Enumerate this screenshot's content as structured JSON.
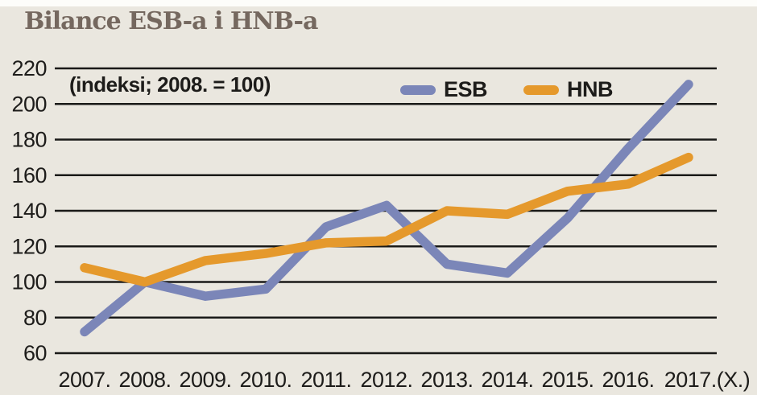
{
  "window": {
    "background": "#fdfdfa",
    "canvas_background": "#eae7df"
  },
  "header": {
    "title": "Bilance ESB-a i HNB-a",
    "title_color": "#75685f"
  },
  "chart_data": {
    "type": "line",
    "title": "Bilance ESB-a i HNB-a",
    "subtitle": "(indeksi; 2008. = 100)",
    "categories": [
      "2007.",
      "2008.",
      "2009.",
      "2010.",
      "2011.",
      "2012.",
      "2013.",
      "2014.",
      "2015.",
      "2016.",
      "2017.(X.)"
    ],
    "series": [
      {
        "name": "ESB",
        "color": "#7b86b8",
        "values": [
          72,
          100,
          92,
          96,
          131,
          143,
          110,
          105,
          136,
          175,
          211
        ]
      },
      {
        "name": "HNB",
        "color": "#e5992c",
        "values": [
          108,
          100,
          112,
          116,
          122,
          123,
          140,
          138,
          151,
          155,
          170
        ]
      }
    ],
    "ylim": [
      60,
      220
    ],
    "ytick_step": 20,
    "yticks": [
      60,
      80,
      100,
      120,
      140,
      160,
      180,
      200,
      220
    ],
    "grid": "horizontal-only",
    "gridline_color": "#1a1a18",
    "label_color": "#1d1c1a",
    "legend_position": "top-inside-right"
  }
}
